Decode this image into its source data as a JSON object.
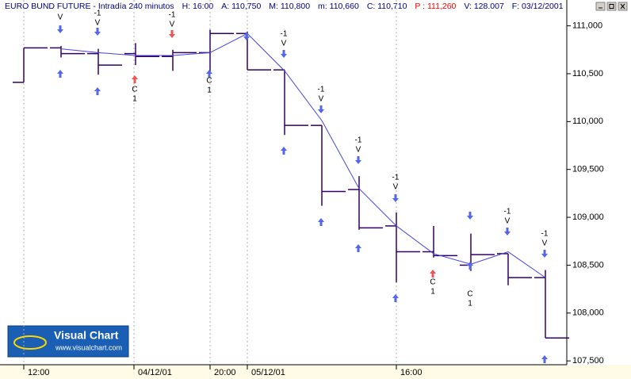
{
  "header": [
    "EURO BUND FUTURE - Intradía 240 minutos",
    "H: 16:00",
    "A: 110,750",
    "M: 110,800",
    "m: 110,660",
    "C: 110,710",
    "P : 111,260",
    "V: 128.007",
    "F: 03/12/2001"
  ],
  "header_colors": [
    "#000080",
    "#000080",
    "#000080",
    "#000080",
    "#000080",
    "#000080",
    "#ff0000",
    "#000080",
    "#000080"
  ],
  "logo": {
    "title": "Visual Chart",
    "url": "www.visualchart.com"
  },
  "annotations": [
    [
      "V"
    ],
    [
      "-1",
      "V"
    ],
    [
      "C",
      "1"
    ],
    [
      "-1",
      "V"
    ],
    [
      "C",
      "1"
    ],
    [
      "-1",
      "V"
    ],
    [
      "-1",
      "V"
    ],
    [
      "-1",
      "V"
    ],
    [
      "-1",
      "V"
    ],
    [
      "C",
      "1"
    ],
    [
      "C",
      "1"
    ],
    [
      "-1",
      "V"
    ],
    [
      "-1",
      "V"
    ]
  ],
  "chart_data": {
    "type": "ohlc",
    "categories": [
      "12:00",
      null,
      null,
      "04/12/01",
      null,
      "20:00",
      "05/12/01",
      null,
      null,
      null,
      "16:00",
      null,
      null,
      null,
      null
    ],
    "open": [
      110.41,
      110.77,
      110.71,
      110.71,
      110.68,
      110.72,
      110.92,
      110.54,
      109.96,
      109.29,
      108.91,
      108.64,
      108.5,
      108.62,
      108.37
    ],
    "high": [
      110.77,
      110.79,
      110.76,
      110.82,
      110.75,
      110.96,
      110.94,
      110.54,
      109.96,
      109.43,
      109.05,
      108.91,
      108.83,
      108.62,
      108.45
    ],
    "low": [
      110.41,
      110.67,
      110.49,
      110.59,
      110.53,
      110.51,
      110.54,
      109.86,
      109.12,
      108.87,
      108.32,
      108.58,
      108.44,
      108.29,
      107.74
    ],
    "close": [
      110.77,
      110.71,
      110.59,
      110.68,
      110.72,
      110.92,
      110.54,
      109.96,
      109.27,
      108.89,
      108.64,
      108.6,
      108.61,
      108.37,
      107.74
    ],
    "bar_color": "#330066",
    "line": {
      "color": "#4444dd",
      "values": [
        null,
        110.76,
        110.72,
        110.69,
        110.69,
        110.72,
        110.92,
        110.53,
        110.01,
        109.3,
        108.91,
        108.62,
        108.51,
        108.64,
        108.37
      ]
    },
    "ylim": [
      107.46,
      111.27
    ],
    "yticks": [
      {
        "value": 107.5,
        "label": "107,500"
      },
      {
        "value": 108,
        "label": "108,000"
      },
      {
        "value": 108.5,
        "label": "108,500"
      },
      {
        "value": 109,
        "label": "109,000"
      },
      {
        "value": 109.5,
        "label": "109,500"
      },
      {
        "value": 110,
        "label": "110,000"
      },
      {
        "value": 110.5,
        "label": "110,500"
      },
      {
        "value": 111,
        "label": "111,000"
      }
    ]
  }
}
